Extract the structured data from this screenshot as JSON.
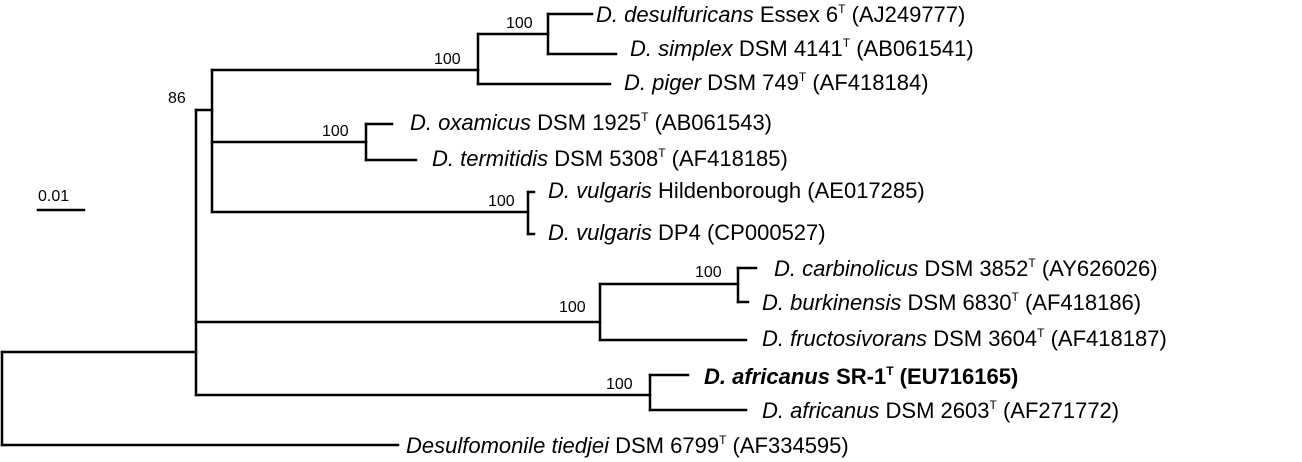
{
  "scale_bar": {
    "label": "0.01"
  },
  "taxa": [
    {
      "genus": "D. desulfuricans",
      "strain": "Essex 6",
      "type_strain": true,
      "accession": "(AJ249777)",
      "bold": false
    },
    {
      "genus": "D. simplex",
      "strain": "DSM 4141",
      "type_strain": true,
      "accession": "(AB061541)",
      "bold": false
    },
    {
      "genus": "D. piger",
      "strain": "DSM 749",
      "type_strain": true,
      "accession": "(AF418184)",
      "bold": false
    },
    {
      "genus": "D. oxamicus",
      "strain": "DSM 1925",
      "type_strain": true,
      "accession": "(AB061543)",
      "bold": false
    },
    {
      "genus": "D. termitidis",
      "strain": "DSM 5308",
      "type_strain": true,
      "accession": "(AF418185)",
      "bold": false
    },
    {
      "genus": "D. vulgaris",
      "strain": "Hildenborough",
      "type_strain": false,
      "accession": "(AE017285)",
      "bold": false
    },
    {
      "genus": "D. vulgaris",
      "strain": "DP4",
      "type_strain": false,
      "accession": "(CP000527)",
      "bold": false
    },
    {
      "genus": "D. carbinolicus",
      "strain": "DSM 3852",
      "type_strain": true,
      "accession": "(AY626026)",
      "bold": false
    },
    {
      "genus": "D. burkinensis",
      "strain": "DSM 6830",
      "type_strain": true,
      "accession": "(AF418186)",
      "bold": false
    },
    {
      "genus": "D. fructosivorans",
      "strain": "DSM 3604",
      "type_strain": true,
      "accession": "(AF418187)",
      "bold": false
    },
    {
      "genus": "D. africanus",
      "strain": "SR-1",
      "type_strain": true,
      "accession": "(EU716165)",
      "bold": true
    },
    {
      "genus": "D. africanus",
      "strain": "DSM 2603",
      "type_strain": true,
      "accession": "(AF271772)",
      "bold": false
    },
    {
      "genus": "Desulfomonile tiedjei",
      "strain": "DSM 6799",
      "type_strain": true,
      "accession": "(AF334595)",
      "bold": false
    }
  ],
  "bootstrap": [
    "100",
    "100",
    "86",
    "100",
    "100",
    "100",
    "100",
    "100"
  ],
  "type_superscript": "T"
}
